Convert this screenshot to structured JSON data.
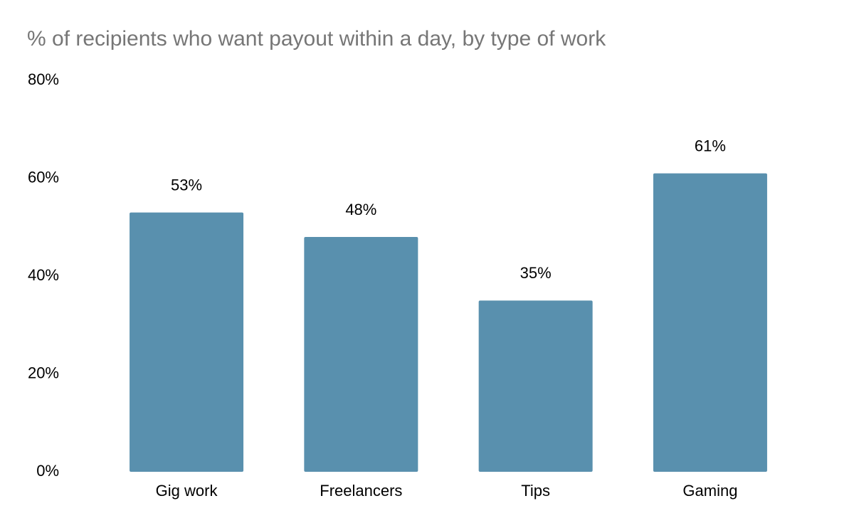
{
  "chart_data": {
    "type": "bar",
    "title": "% of recipients who want payout within a day, by type of work",
    "categories": [
      "Gig work",
      "Freelancers",
      "Tips",
      "Gaming"
    ],
    "values": [
      53,
      48,
      35,
      61
    ],
    "value_labels": [
      "53%",
      "48%",
      "35%",
      "61%"
    ],
    "color": "#5990ae",
    "ylim": [
      0,
      80
    ],
    "yticks": [
      {
        "value": 0,
        "label": "0%"
      },
      {
        "value": 20,
        "label": "20%"
      },
      {
        "value": 40,
        "label": "40%"
      },
      {
        "value": 60,
        "label": "60%"
      },
      {
        "value": 80,
        "label": "80%"
      }
    ],
    "grid": false
  }
}
